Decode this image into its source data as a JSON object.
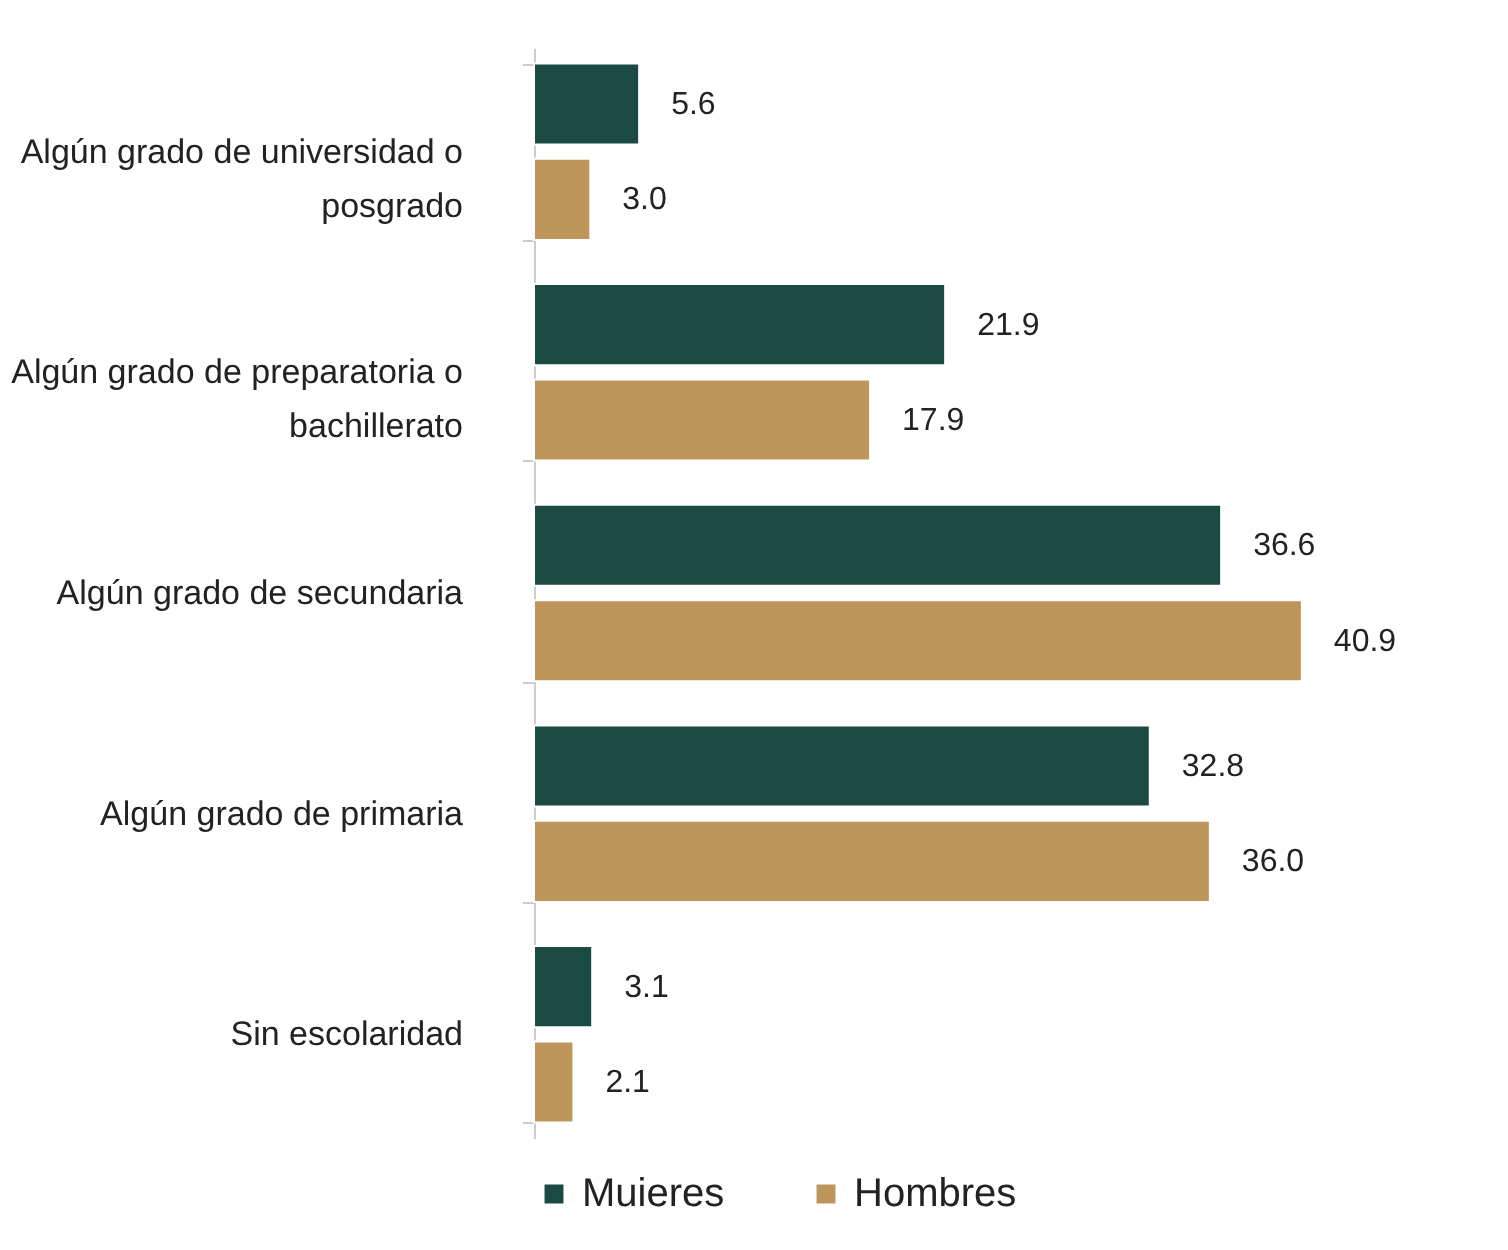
{
  "chart_data": {
    "type": "bar",
    "orientation": "horizontal",
    "categories": [
      "Algún grado de universidad o posgrado",
      "Algún grado de preparatoria o bachillerato",
      "Algún grado de secundaria",
      "Algún grado de primaria",
      "Sin escolaridad"
    ],
    "series": [
      {
        "name": "Muieres",
        "color": "#1b4a43",
        "values": [
          5.6,
          21.9,
          36.6,
          32.8,
          3.1
        ],
        "value_labels": [
          "5.6",
          "21.9",
          "36.6",
          "32.8",
          "3.1"
        ]
      },
      {
        "name": "Hombres",
        "color": "#be965c",
        "values": [
          3.0,
          17.9,
          40.9,
          36.0,
          2.1
        ],
        "value_labels": [
          "3.0",
          "17.9",
          "40.9",
          "36.0",
          "2.1"
        ]
      }
    ],
    "tick_labels": "y",
    "legend": "bottom"
  }
}
